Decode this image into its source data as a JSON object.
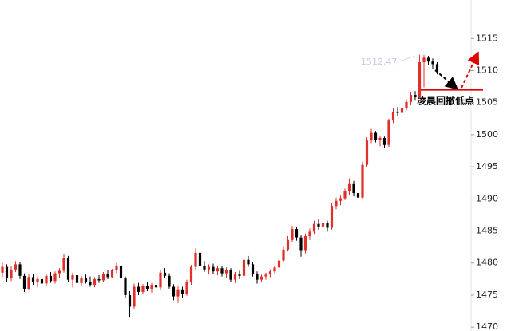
{
  "chart_data": {
    "type": "candlestick",
    "ylim": [
      1469.4,
      1521
    ],
    "yticks": [
      1470,
      1475,
      1480,
      1485,
      1490,
      1495,
      1500,
      1505,
      1510,
      1515
    ],
    "up_color": "#e0302a",
    "down_color": "#000000",
    "high_label": "1512.47",
    "annotation": "凌晨回撤低点",
    "level": 1507,
    "level_color": "#e00000",
    "ohlc": [
      [
        1478.5,
        1480,
        1477.8,
        1479.4
      ],
      [
        1479.4,
        1479.8,
        1477,
        1477.6
      ],
      [
        1477.6,
        1479.5,
        1477.2,
        1479
      ],
      [
        1479,
        1480.3,
        1478.6,
        1479.8
      ],
      [
        1479.8,
        1480.2,
        1477.5,
        1478
      ],
      [
        1478,
        1478.4,
        1475.5,
        1476
      ],
      [
        1476,
        1478.2,
        1475.8,
        1477.8
      ],
      [
        1477.8,
        1478.3,
        1476.6,
        1477
      ],
      [
        1477,
        1477.9,
        1476.2,
        1477.5
      ],
      [
        1477.5,
        1478,
        1476.5,
        1476.8
      ],
      [
        1476.8,
        1478.3,
        1476.4,
        1478
      ],
      [
        1478,
        1478.6,
        1476.9,
        1477.2
      ],
      [
        1477.2,
        1478.7,
        1476.8,
        1478.4
      ],
      [
        1478.4,
        1479.2,
        1477.6,
        1478.8
      ],
      [
        1478.8,
        1481.4,
        1478.5,
        1480.8
      ],
      [
        1480.8,
        1481.1,
        1477,
        1477.4
      ],
      [
        1477.4,
        1478.5,
        1476.2,
        1478.1
      ],
      [
        1478.1,
        1478.4,
        1476.5,
        1476.9
      ],
      [
        1476.9,
        1478,
        1476.4,
        1477.7
      ],
      [
        1477.7,
        1478.2,
        1476.8,
        1477.1
      ],
      [
        1477.1,
        1477.9,
        1476.3,
        1476.6
      ],
      [
        1476.6,
        1477.8,
        1476.2,
        1477.5
      ],
      [
        1477.5,
        1478.1,
        1476.9,
        1477.3
      ],
      [
        1477.3,
        1478.6,
        1477,
        1478.3
      ],
      [
        1478.3,
        1478.9,
        1477.5,
        1477.8
      ],
      [
        1477.8,
        1479.1,
        1477.6,
        1478.9
      ],
      [
        1478.9,
        1480,
        1478.4,
        1479.6
      ],
      [
        1479.6,
        1480.1,
        1477.2,
        1477.6
      ],
      [
        1477.6,
        1477.9,
        1474.5,
        1475
      ],
      [
        1475,
        1475.6,
        1471.5,
        1473.2
      ],
      [
        1473.2,
        1476.8,
        1472.8,
        1476.3
      ],
      [
        1476.3,
        1476.9,
        1475,
        1475.5
      ],
      [
        1475.5,
        1476.7,
        1475.1,
        1476.4
      ],
      [
        1476.4,
        1477,
        1475.6,
        1476
      ],
      [
        1476,
        1476.9,
        1475.4,
        1476.6
      ],
      [
        1476.6,
        1477.3,
        1475.9,
        1476.2
      ],
      [
        1476.2,
        1478.9,
        1475.8,
        1478.5
      ],
      [
        1478.5,
        1479.2,
        1477.6,
        1478
      ],
      [
        1478,
        1478.4,
        1476,
        1476.3
      ],
      [
        1476.3,
        1476.7,
        1474.2,
        1474.8
      ],
      [
        1474.8,
        1476.4,
        1473.8,
        1475.9
      ],
      [
        1475.9,
        1476.3,
        1474.6,
        1475.2
      ],
      [
        1475.2,
        1477.4,
        1474.9,
        1477
      ],
      [
        1477,
        1479.7,
        1476.6,
        1479.4
      ],
      [
        1479.4,
        1482.3,
        1479,
        1481.6
      ],
      [
        1481.6,
        1482,
        1479.2,
        1479.6
      ],
      [
        1479.6,
        1480.3,
        1478.6,
        1479
      ],
      [
        1479,
        1479.8,
        1478.2,
        1479.4
      ],
      [
        1479.4,
        1479.9,
        1478.3,
        1478.7
      ],
      [
        1478.7,
        1479.6,
        1478.1,
        1479.2
      ],
      [
        1479.2,
        1479.5,
        1477.9,
        1478.4
      ],
      [
        1478.4,
        1479.3,
        1477.6,
        1478.9
      ],
      [
        1478.9,
        1479.2,
        1477,
        1477.4
      ],
      [
        1477.4,
        1478.6,
        1476.9,
        1478.2
      ],
      [
        1478.2,
        1478.8,
        1477.5,
        1478
      ],
      [
        1478,
        1480.9,
        1477.8,
        1480.5
      ],
      [
        1480.5,
        1481.1,
        1479.4,
        1479.8
      ],
      [
        1479.8,
        1480.2,
        1477.9,
        1478.3
      ],
      [
        1478.3,
        1478.7,
        1476.8,
        1477.4
      ],
      [
        1477.4,
        1478.2,
        1477,
        1477.9
      ],
      [
        1477.9,
        1478.5,
        1477.4,
        1478.2
      ],
      [
        1478.2,
        1479,
        1477.8,
        1478.7
      ],
      [
        1478.7,
        1479.6,
        1478.4,
        1479.3
      ],
      [
        1479.3,
        1480.8,
        1479,
        1480.4
      ],
      [
        1480.4,
        1482.5,
        1480.1,
        1482.1
      ],
      [
        1482.1,
        1484.2,
        1481.8,
        1483.6
      ],
      [
        1483.6,
        1485.8,
        1483.2,
        1485.3
      ],
      [
        1485.3,
        1485.7,
        1483.5,
        1484
      ],
      [
        1484,
        1484.3,
        1481,
        1481.9
      ],
      [
        1481.9,
        1484.6,
        1481.5,
        1484.2
      ],
      [
        1484.2,
        1485.4,
        1483.6,
        1484.9
      ],
      [
        1484.9,
        1486.6,
        1484.5,
        1486.1
      ],
      [
        1486.1,
        1486.8,
        1485.2,
        1485.7
      ],
      [
        1485.7,
        1486.5,
        1485.3,
        1486.2
      ],
      [
        1486.2,
        1486.6,
        1484.9,
        1485.5
      ],
      [
        1485.5,
        1489.3,
        1485.2,
        1488.9
      ],
      [
        1488.9,
        1490.2,
        1488.4,
        1489.7
      ],
      [
        1489.7,
        1490.5,
        1489,
        1490.1
      ],
      [
        1490.1,
        1491.6,
        1489.8,
        1491.2
      ],
      [
        1491.2,
        1493.2,
        1490.6,
        1492.3
      ],
      [
        1492.3,
        1492.8,
        1490.4,
        1490.9
      ],
      [
        1490.9,
        1491.5,
        1489.4,
        1490.2
      ],
      [
        1490.2,
        1495.8,
        1489.9,
        1495.3
      ],
      [
        1495.3,
        1499.6,
        1495,
        1499.1
      ],
      [
        1499.1,
        1500.9,
        1498.7,
        1500.3
      ],
      [
        1500.3,
        1500.6,
        1498.8,
        1499.2
      ],
      [
        1499.2,
        1499.8,
        1498.2,
        1499.5
      ],
      [
        1499.5,
        1499.7,
        1497.9,
        1498.4
      ],
      [
        1498.4,
        1502.5,
        1498.1,
        1502.2
      ],
      [
        1502.2,
        1504.2,
        1501.8,
        1503.6
      ],
      [
        1503.6,
        1504.3,
        1502.9,
        1503.4
      ],
      [
        1503.4,
        1504.6,
        1503,
        1504.2
      ],
      [
        1504.2,
        1505.5,
        1503.8,
        1505.1
      ],
      [
        1505.1,
        1506.7,
        1504.6,
        1506.2
      ],
      [
        1506.2,
        1506.8,
        1505.3,
        1505.9
      ],
      [
        1505.9,
        1512.47,
        1505.6,
        1511.3
      ],
      [
        1511.3,
        1512.4,
        1507.4,
        1512
      ],
      [
        1512,
        1512.3,
        1510.8,
        1511.4
      ],
      [
        1511.4,
        1511.9,
        1510.2,
        1511
      ],
      [
        1511,
        1511.3,
        1509.4,
        1509.8
      ]
    ]
  }
}
